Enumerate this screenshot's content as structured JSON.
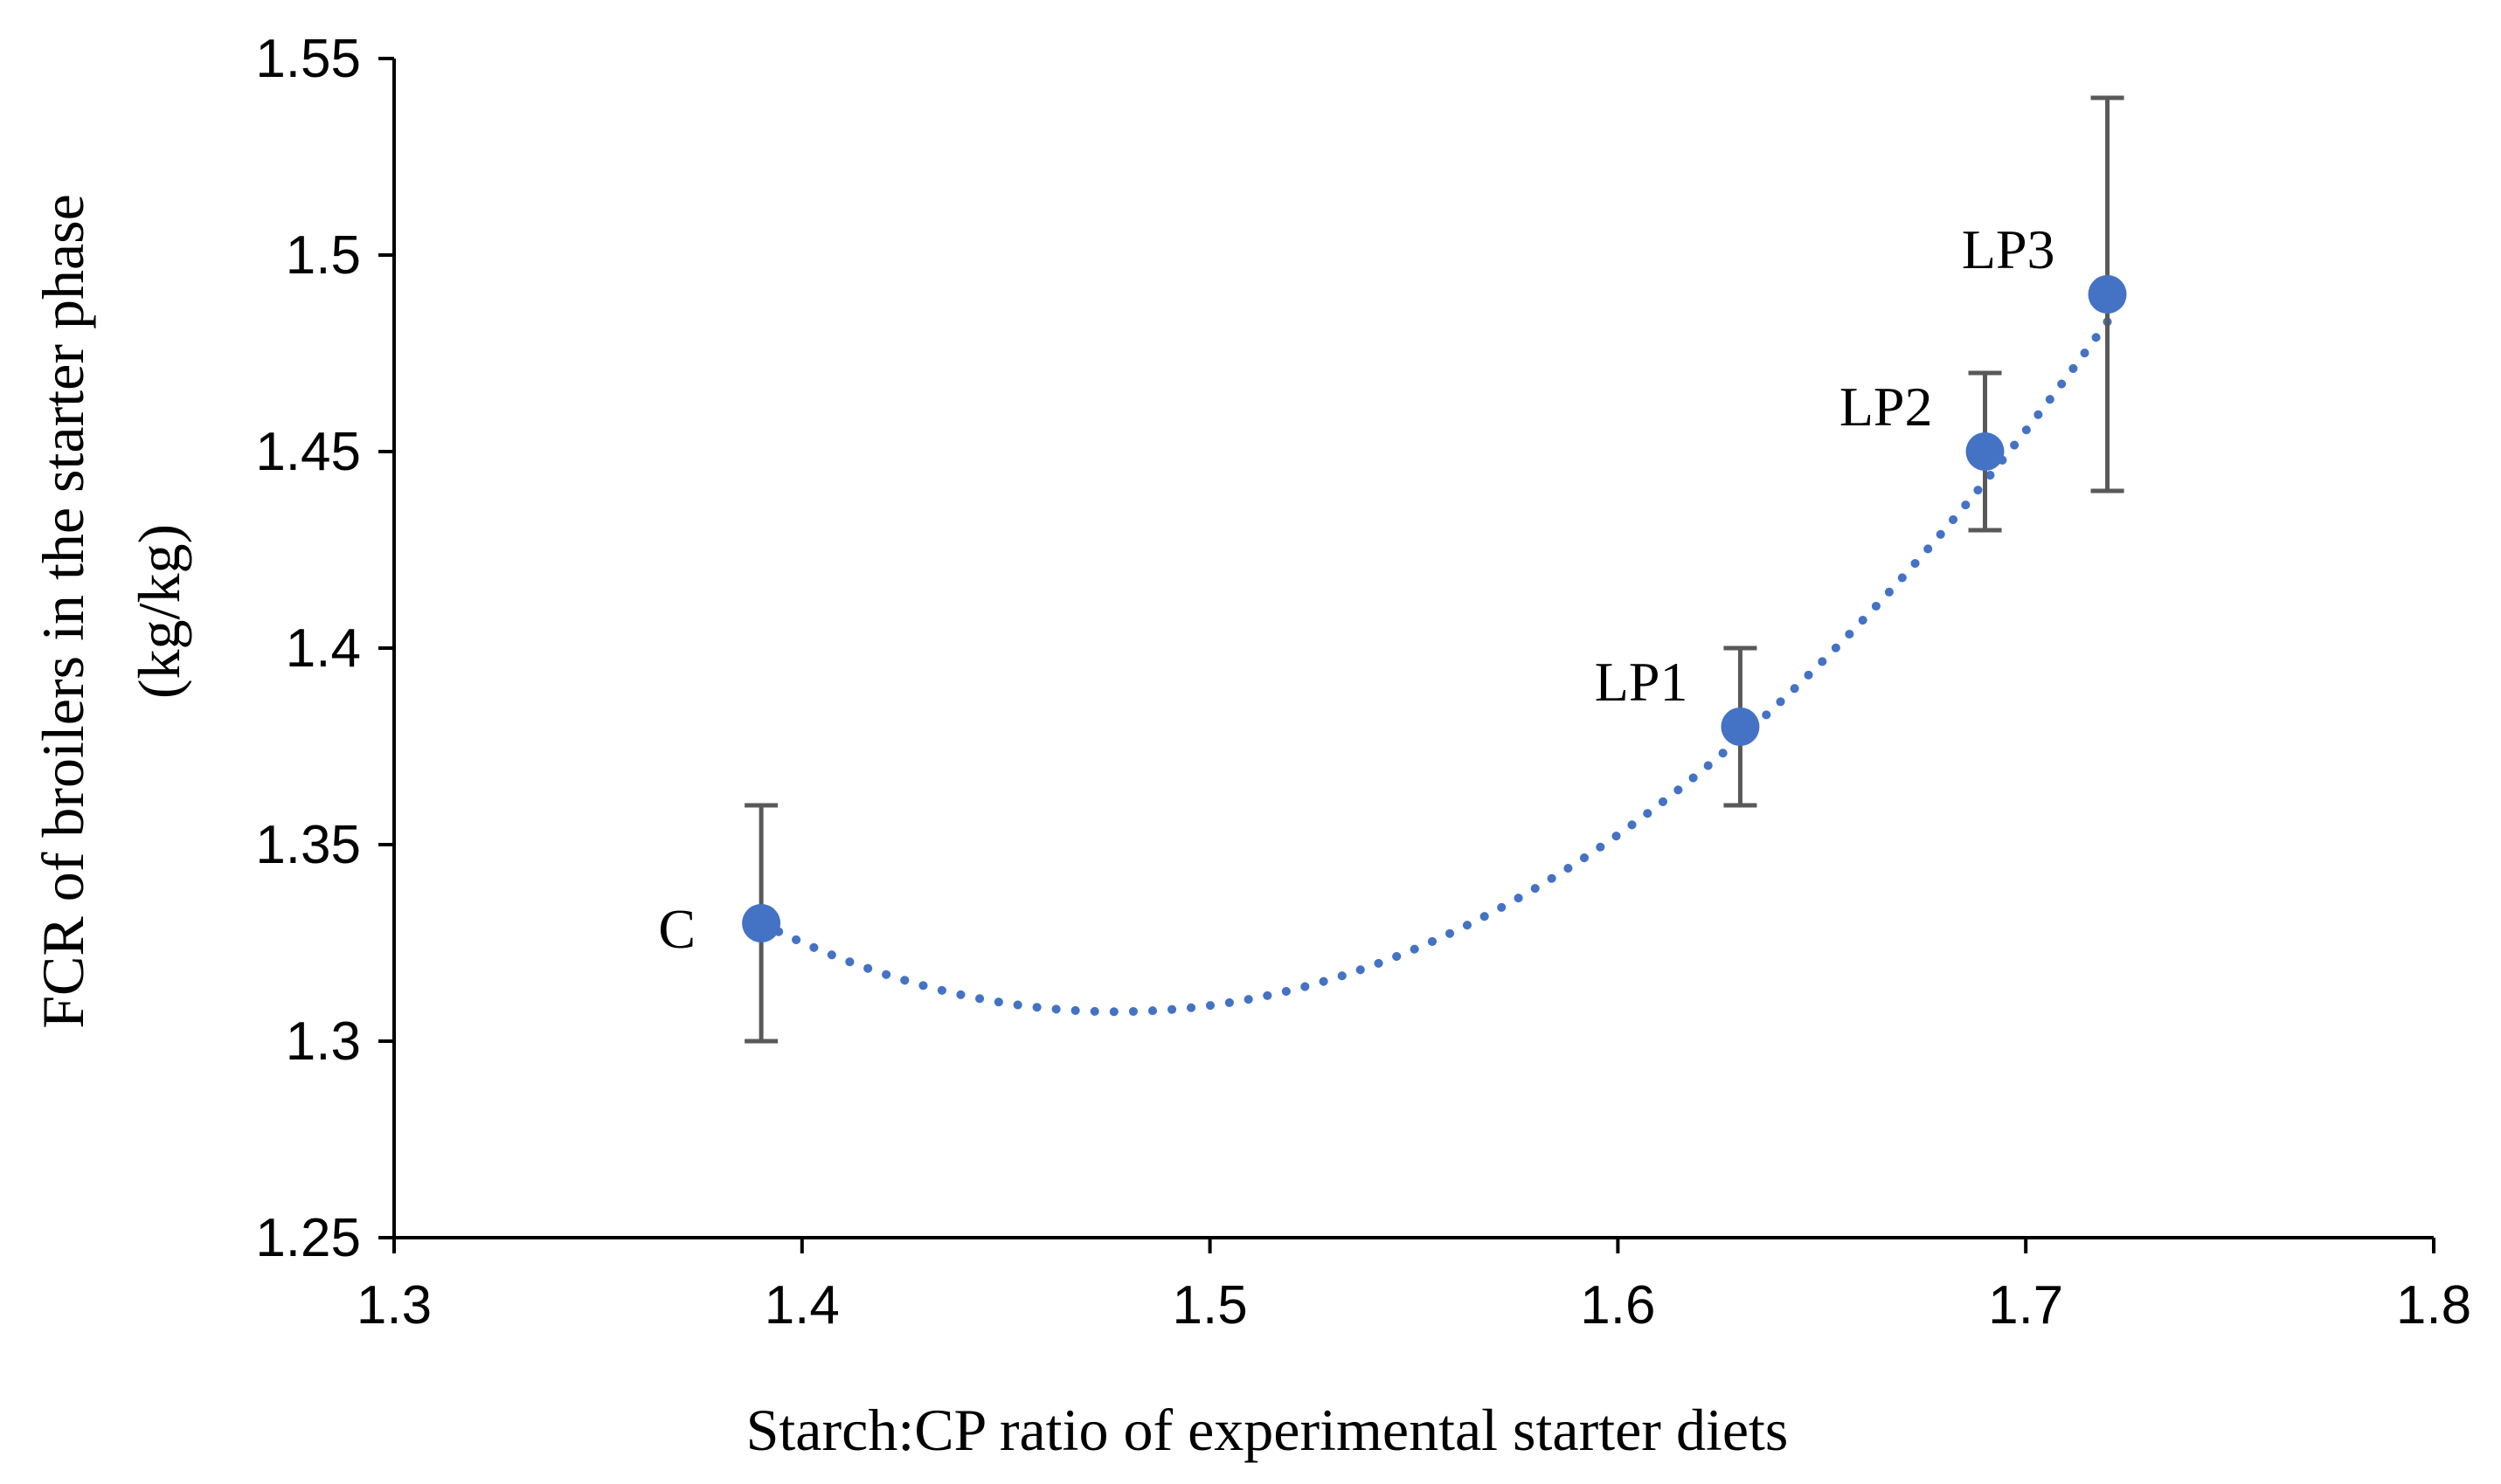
{
  "chart_data": {
    "type": "scatter",
    "title": "",
    "xlabel": "Starch:CP ratio of experimental starter diets",
    "ylabel_lines": [
      "FCR of broilers in the starter phase",
      "(kg/kg)"
    ],
    "xlim": [
      1.3,
      1.8
    ],
    "ylim": [
      1.25,
      1.55
    ],
    "xticks": [
      1.3,
      1.4,
      1.5,
      1.6,
      1.7,
      1.8
    ],
    "yticks": [
      1.25,
      1.3,
      1.35,
      1.4,
      1.45,
      1.5,
      1.55
    ],
    "xtick_labels": [
      "1.3",
      "1.4",
      "1.5",
      "1.6",
      "1.7",
      "1.8"
    ],
    "ytick_labels": [
      "1.25",
      "1.3",
      "1.35",
      "1.4",
      "1.45",
      "1.5",
      "1.55"
    ],
    "grid": false,
    "legend": "none",
    "points": [
      {
        "label": "C",
        "x": 1.39,
        "y": 1.33,
        "err_low": 1.3,
        "err_high": 1.36,
        "label_side": "left"
      },
      {
        "label": "LP1",
        "x": 1.63,
        "y": 1.38,
        "err_low": 1.36,
        "err_high": 1.4,
        "label_side": "upper-left"
      },
      {
        "label": "LP2",
        "x": 1.69,
        "y": 1.45,
        "err_low": 1.43,
        "err_high": 1.47,
        "label_side": "upper-left"
      },
      {
        "label": "LP3",
        "x": 1.72,
        "y": 1.49,
        "err_low": 1.44,
        "err_high": 1.54,
        "label_side": "upper-left"
      }
    ],
    "trendline": {
      "kind": "polynomial-2",
      "style": "dotted",
      "x_range": [
        1.39,
        1.72
      ],
      "vertex": {
        "x": 1.477,
        "y": 1.3075
      }
    },
    "colors": {
      "marker": "#4472C4",
      "trendline": "#4472C4",
      "error_bar": "#595959",
      "axis": "#000000"
    }
  }
}
